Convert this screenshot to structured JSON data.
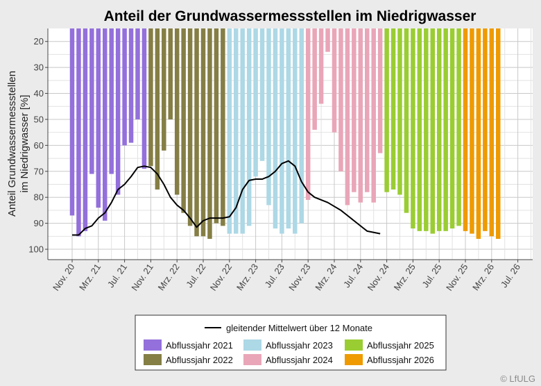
{
  "chart_data": {
    "type": "bar",
    "title": "Anteil der Grundwassermessstellen im Niedrigwasser",
    "xlabel": "",
    "ylabel_lines": [
      "Anteil Grundwassermessstellen",
      "im Niedrigwasser [%]"
    ],
    "y_axis": {
      "reversed": true,
      "ylim": [
        15,
        104
      ],
      "ticks": [
        20,
        30,
        40,
        50,
        60,
        70,
        80,
        90,
        100
      ]
    },
    "x_ticks": [
      {
        "label": "Nov. 20",
        "month_index": 0
      },
      {
        "label": "Mrz. 21",
        "month_index": 4
      },
      {
        "label": "Jul. 21",
        "month_index": 8
      },
      {
        "label": "Nov. 21",
        "month_index": 12
      },
      {
        "label": "Mrz. 22",
        "month_index": 16
      },
      {
        "label": "Jul. 22",
        "month_index": 20
      },
      {
        "label": "Nov. 22",
        "month_index": 24
      },
      {
        "label": "Mrz. 23",
        "month_index": 28
      },
      {
        "label": "Jul. 23",
        "month_index": 32
      },
      {
        "label": "Nov. 23",
        "month_index": 36
      },
      {
        "label": "Mrz. 24",
        "month_index": 40
      },
      {
        "label": "Jul. 24",
        "month_index": 44
      },
      {
        "label": "Nov. 24",
        "month_index": 48
      },
      {
        "label": "Mrz. 25",
        "month_index": 52
      },
      {
        "label": "Jul. 25",
        "month_index": 56
      },
      {
        "label": "Nov. 25",
        "month_index": 60
      },
      {
        "label": "Mrz. 26",
        "month_index": 64
      },
      {
        "label": "Jul. 26",
        "month_index": 68
      }
    ],
    "grid": true,
    "grid_minor": true,
    "legend_position": "bottom",
    "series": [
      {
        "name": "Abflussjahr 2021",
        "color": "#9370db",
        "start_month_index": 0,
        "values": [
          87,
          95,
          93,
          71,
          84,
          89,
          71,
          79,
          60,
          59,
          50,
          69
        ]
      },
      {
        "name": "Abflussjahr 2022",
        "color": "#857e45",
        "start_month_index": 12,
        "values": [
          68,
          77,
          62,
          50,
          79,
          86,
          91,
          95,
          95,
          96,
          90,
          91
        ]
      },
      {
        "name": "Abflussjahr 2023",
        "color": "#add8e6",
        "start_month_index": 24,
        "values": [
          94,
          94,
          94,
          91,
          72,
          66,
          83,
          92,
          94,
          92,
          94,
          90
        ]
      },
      {
        "name": "Abflussjahr 2024",
        "color": "#e9a6b8",
        "start_month_index": 36,
        "values": [
          81,
          54,
          44,
          24,
          55,
          70,
          83,
          78,
          82,
          78,
          82,
          63
        ]
      },
      {
        "name": "Abflussjahr 2025",
        "color": "#9acd32",
        "start_month_index": 48,
        "values": [
          78,
          77,
          79,
          86,
          92,
          93,
          93,
          94,
          93,
          93,
          92,
          91
        ]
      },
      {
        "name": "Abflussjahr 2026",
        "color": "#ee9a00",
        "start_month_index": 60,
        "values": [
          93,
          94,
          96,
          93,
          95,
          96
        ]
      }
    ],
    "line_series": {
      "name": "gleitender Mittelwert über 12 Monate",
      "color": "#000000",
      "start_month_index": 0,
      "values": [
        94.5,
        94.5,
        92,
        91,
        88,
        86,
        82,
        77,
        75,
        72,
        68.5,
        68,
        68.5,
        71,
        75,
        80,
        83,
        85,
        88,
        91.5,
        89,
        88,
        88,
        88,
        87.5,
        84,
        77,
        73.5,
        73,
        73,
        72,
        70,
        67,
        66,
        68,
        74,
        78,
        80,
        81,
        82,
        83.5,
        85,
        87,
        89,
        91,
        93,
        93.5,
        94
      ]
    }
  },
  "copyright": "© LfULG"
}
